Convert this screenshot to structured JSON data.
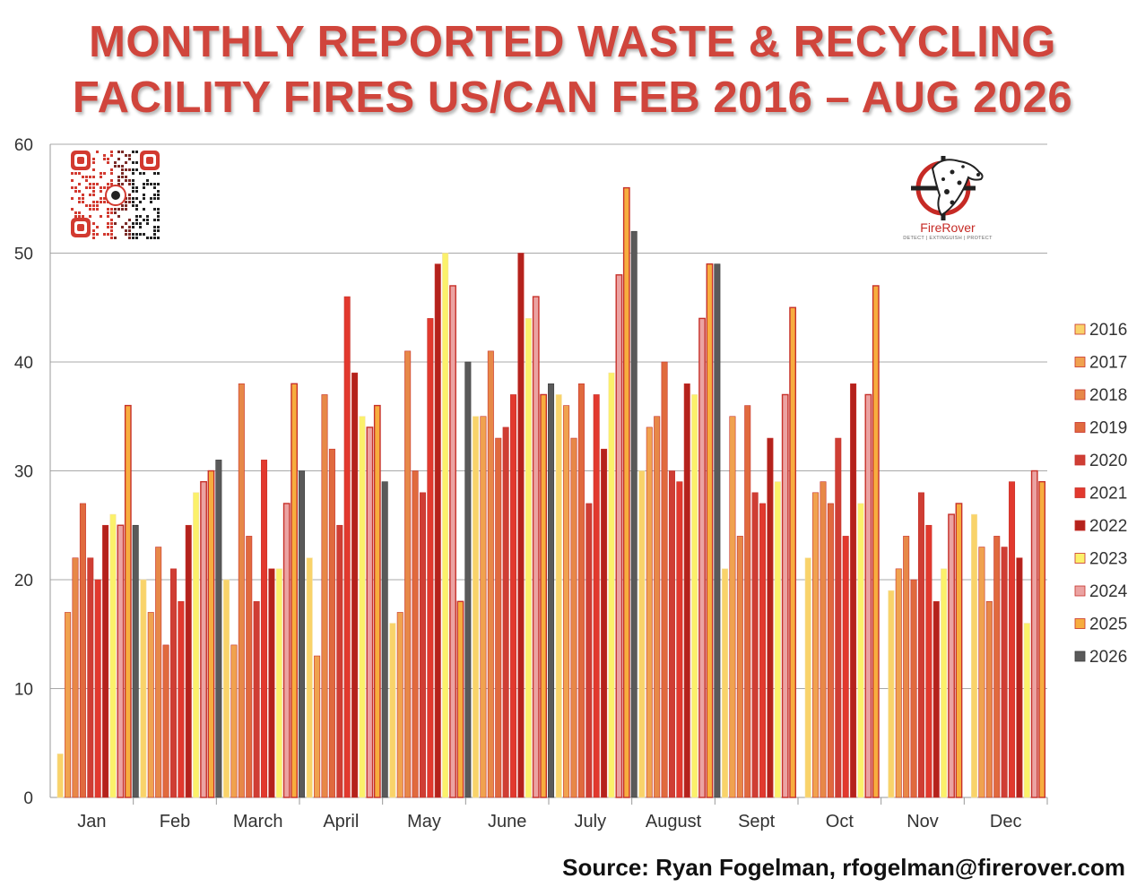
{
  "title_line1": "MONTHLY REPORTED WASTE & RECYCLING",
  "title_line2": "FACILITY FIRES US/CAN FEB 2016 – AUG 2026",
  "source": "Source: Ryan Fogelman, rfogelman@firerover.com",
  "logo": {
    "name": "FireRover",
    "tagline": "DETECT | EXTINGUISH | PROTECT"
  },
  "chart_data": {
    "type": "bar",
    "ylim": [
      0,
      60
    ],
    "yticks": [
      0,
      10,
      20,
      30,
      40,
      50,
      60
    ],
    "grid": true,
    "legend_position": "right",
    "categories": [
      "Jan",
      "Feb",
      "March",
      "April",
      "May",
      "June",
      "July",
      "August",
      "Sept",
      "Oct",
      "Nov",
      "Dec"
    ],
    "series": [
      {
        "name": "2016",
        "color": "#f9d36a",
        "values": [
          4,
          20,
          20,
          22,
          16,
          35,
          37,
          30,
          21,
          22,
          19,
          26
        ]
      },
      {
        "name": "2017",
        "color": "#f0a24f",
        "values": [
          17,
          17,
          14,
          13,
          17,
          35,
          36,
          34,
          35,
          28,
          21,
          23
        ]
      },
      {
        "name": "2018",
        "color": "#e78848",
        "values": [
          22,
          23,
          38,
          37,
          41,
          41,
          33,
          35,
          24,
          29,
          24,
          18
        ]
      },
      {
        "name": "2019",
        "color": "#e06a3e",
        "values": [
          27,
          14,
          24,
          32,
          30,
          33,
          38,
          40,
          36,
          27,
          20,
          24
        ]
      },
      {
        "name": "2020",
        "color": "#cf3e34",
        "values": [
          22,
          21,
          18,
          25,
          28,
          34,
          27,
          30,
          28,
          33,
          28,
          23
        ]
      },
      {
        "name": "2021",
        "color": "#e2392e",
        "values": [
          20,
          18,
          31,
          46,
          44,
          37,
          37,
          29,
          27,
          24,
          25,
          29
        ]
      },
      {
        "name": "2022",
        "color": "#b4221c",
        "values": [
          25,
          25,
          21,
          39,
          49,
          50,
          32,
          38,
          33,
          38,
          18,
          22
        ]
      },
      {
        "name": "2023",
        "color": "#fbf16a",
        "values": [
          26,
          28,
          21,
          35,
          50,
          44,
          39,
          37,
          29,
          27,
          21,
          16
        ]
      },
      {
        "name": "2024",
        "color": "#eba3a2",
        "values": [
          25,
          29,
          27,
          34,
          47,
          46,
          48,
          44,
          37,
          37,
          26,
          30
        ]
      },
      {
        "name": "2025",
        "color": "#f7ad3f",
        "values": [
          36,
          30,
          38,
          36,
          18,
          37,
          56,
          49,
          45,
          47,
          27,
          29
        ]
      },
      {
        "name": "2026",
        "color": "#5a5a5a",
        "values": [
          25,
          31,
          30,
          29,
          40,
          38,
          52,
          49,
          null,
          null,
          null,
          null
        ]
      }
    ]
  }
}
